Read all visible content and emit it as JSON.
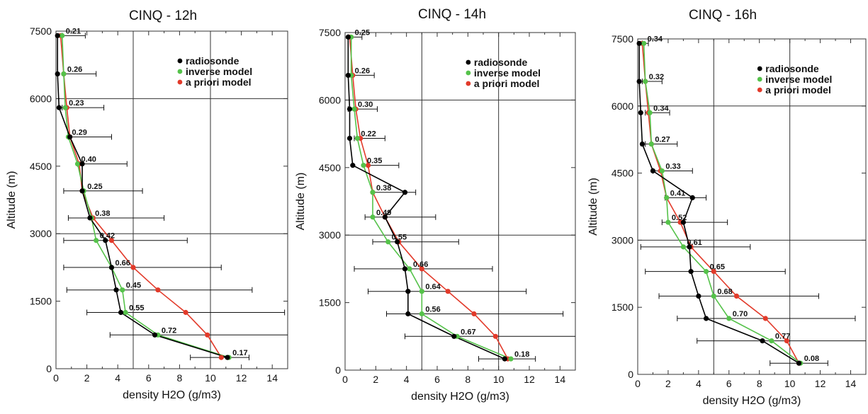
{
  "colors": {
    "radiosonde": "#000000",
    "inverse": "#55c24a",
    "apriori": "#e23a2a",
    "grid": "#333333",
    "errorbar": "#111111"
  },
  "chart_data": [
    {
      "type": "line",
      "title": "CINQ - 12h",
      "xlabel": "density H2O (g/m3)",
      "ylabel": "Altitude (m)",
      "xlim": [
        0,
        15
      ],
      "ylim": [
        0,
        7500
      ],
      "xticks": [
        0,
        2,
        4,
        6,
        8,
        10,
        12,
        14
      ],
      "yticks": [
        0,
        1500,
        3000,
        4500,
        6000,
        7500
      ],
      "grid": {
        "x": [
          5,
          10
        ],
        "y": [
          3000,
          6000
        ]
      },
      "legend": {
        "position": "top-right",
        "entries": [
          "radiosonde",
          "inverse model",
          "a priori model"
        ]
      },
      "altitudes": [
        7400,
        6550,
        5800,
        5150,
        4550,
        3950,
        3350,
        2850,
        2250,
        1750,
        1250,
        750,
        250
      ],
      "series": [
        {
          "name": "radiosonde",
          "values": [
            0.1,
            0.1,
            0.2,
            0.9,
            1.7,
            1.7,
            2.2,
            3.2,
            3.6,
            3.9,
            4.2,
            6.4,
            11.1
          ]
        },
        {
          "name": "inverse model",
          "values": [
            0.4,
            0.5,
            0.6,
            0.8,
            1.4,
            1.8,
            2.3,
            2.6,
            3.6,
            4.3,
            4.5,
            6.6,
            11.2
          ]
        },
        {
          "name": "a priori model",
          "values": [
            0.3,
            0.5,
            0.7,
            0.9,
            1.5,
            1.7,
            2.4,
            3.6,
            5.0,
            6.6,
            8.4,
            9.8,
            10.7
          ]
        }
      ],
      "error_bars": [
        [
          0.4,
          1.9
        ],
        [
          0.5,
          2.6
        ],
        [
          0.4,
          3.1
        ],
        [
          0.8,
          3.6
        ],
        [
          1.4,
          4.6
        ],
        [
          0.5,
          5.6
        ],
        [
          0.8,
          7.0
        ],
        [
          0.5,
          8.5
        ],
        [
          0.5,
          10.7
        ],
        [
          0.7,
          12.7
        ],
        [
          2.0,
          14.8
        ],
        [
          3.5,
          15.0
        ],
        [
          8.7,
          12.5
        ]
      ],
      "labels": [
        "0.21",
        "0.26",
        "0.23",
        "0.29",
        "0.40",
        "0.25",
        "0.38",
        "0.42",
        "0.66",
        "0.45",
        "0.55",
        "0.72",
        "0.17"
      ]
    },
    {
      "type": "line",
      "title": "CINQ - 14h",
      "xlabel": "density H2O (g/m3)",
      "ylabel": "Altitude (m)",
      "xlim": [
        0,
        15
      ],
      "ylim": [
        0,
        7500
      ],
      "xticks": [
        0,
        2,
        4,
        6,
        8,
        10,
        12,
        14
      ],
      "yticks": [
        0,
        1500,
        3000,
        4500,
        6000,
        7500
      ],
      "grid": {
        "x": [
          5,
          10
        ],
        "y": [
          3000,
          6000
        ]
      },
      "legend": {
        "position": "top-right",
        "entries": [
          "radiosonde",
          "inverse model",
          "a priori model"
        ]
      },
      "altitudes": [
        7400,
        6550,
        5800,
        5150,
        4550,
        3950,
        3400,
        2850,
        2250,
        1750,
        1250,
        750,
        250
      ],
      "series": [
        {
          "name": "radiosonde",
          "values": [
            0.2,
            0.2,
            0.3,
            0.3,
            0.5,
            3.9,
            2.6,
            3.4,
            3.9,
            4.1,
            4.1,
            7.1,
            10.4
          ]
        },
        {
          "name": "inverse model",
          "values": [
            0.4,
            0.4,
            0.6,
            0.8,
            1.2,
            1.8,
            1.8,
            2.8,
            4.2,
            5.0,
            5.0,
            7.3,
            10.8
          ]
        },
        {
          "name": "a priori model",
          "values": [
            0.3,
            0.5,
            0.7,
            1.0,
            1.5,
            1.8,
            2.6,
            3.5,
            5.0,
            6.7,
            8.4,
            9.8,
            10.6
          ]
        }
      ],
      "error_bars": [
        [
          0.2,
          1.1
        ],
        [
          0.2,
          1.9
        ],
        [
          0.2,
          2.1
        ],
        [
          0.6,
          2.6
        ],
        [
          1.5,
          3.5
        ],
        [
          1.8,
          4.6
        ],
        [
          1.3,
          5.9
        ],
        [
          1.8,
          7.4
        ],
        [
          0.6,
          9.6
        ],
        [
          1.5,
          11.8
        ],
        [
          2.7,
          14.2
        ],
        [
          3.9,
          15.0
        ],
        [
          8.7,
          12.4
        ]
      ],
      "labels": [
        "0.25",
        "0.26",
        "0.30",
        "0.22",
        "0.35",
        "0.38",
        "0.49",
        "0.55",
        "0.66",
        "0.64",
        "0.56",
        "0.67",
        "0.18"
      ]
    },
    {
      "type": "line",
      "title": "CINQ - 16h",
      "xlabel": "density H2O (g/m3)",
      "ylabel": "Altitude (m)",
      "xlim": [
        0,
        15
      ],
      "ylim": [
        0,
        7500
      ],
      "xticks": [
        0,
        2,
        4,
        6,
        8,
        10,
        12,
        14
      ],
      "yticks": [
        0,
        1500,
        3000,
        4500,
        6000,
        7500
      ],
      "grid": {
        "x": [
          5,
          10
        ],
        "y": [
          3000,
          6000
        ]
      },
      "legend": {
        "position": "top-right",
        "entries": [
          "radiosonde",
          "inverse model",
          "a priori model"
        ]
      },
      "altitudes": [
        7400,
        6550,
        5850,
        5150,
        4550,
        3950,
        3400,
        2850,
        2300,
        1750,
        1250,
        750,
        250
      ],
      "series": [
        {
          "name": "radiosonde",
          "values": [
            0.1,
            0.1,
            0.2,
            0.3,
            1.0,
            3.6,
            3.0,
            3.4,
            3.5,
            4.0,
            4.5,
            8.2,
            10.6
          ]
        },
        {
          "name": "inverse model",
          "values": [
            0.4,
            0.5,
            0.8,
            0.9,
            1.6,
            1.9,
            2.0,
            3.0,
            4.5,
            5.0,
            6.0,
            8.8,
            10.7
          ]
        },
        {
          "name": "a priori model",
          "values": [
            0.3,
            0.5,
            0.7,
            0.9,
            1.5,
            1.9,
            2.8,
            3.5,
            5.0,
            6.5,
            8.4,
            9.8,
            10.6
          ]
        }
      ],
      "error_bars": [
        [
          0.3,
          0.7
        ],
        [
          0.3,
          1.6
        ],
        [
          0.5,
          2.1
        ],
        [
          0.5,
          2.6
        ],
        [
          1.0,
          3.6
        ],
        [
          1.8,
          4.5
        ],
        [
          1.6,
          5.9
        ],
        [
          0.2,
          7.4
        ],
        [
          0.5,
          9.7
        ],
        [
          1.4,
          11.9
        ],
        [
          2.6,
          14.3
        ],
        [
          3.9,
          15.0
        ],
        [
          8.7,
          12.5
        ]
      ],
      "labels": [
        "0.34",
        "0.32",
        "0.34",
        "0.27",
        "0.33",
        "0.41",
        "0.52",
        "0.61",
        "0.65",
        "0.68",
        "0.70",
        "0.77",
        "0.08"
      ]
    }
  ]
}
